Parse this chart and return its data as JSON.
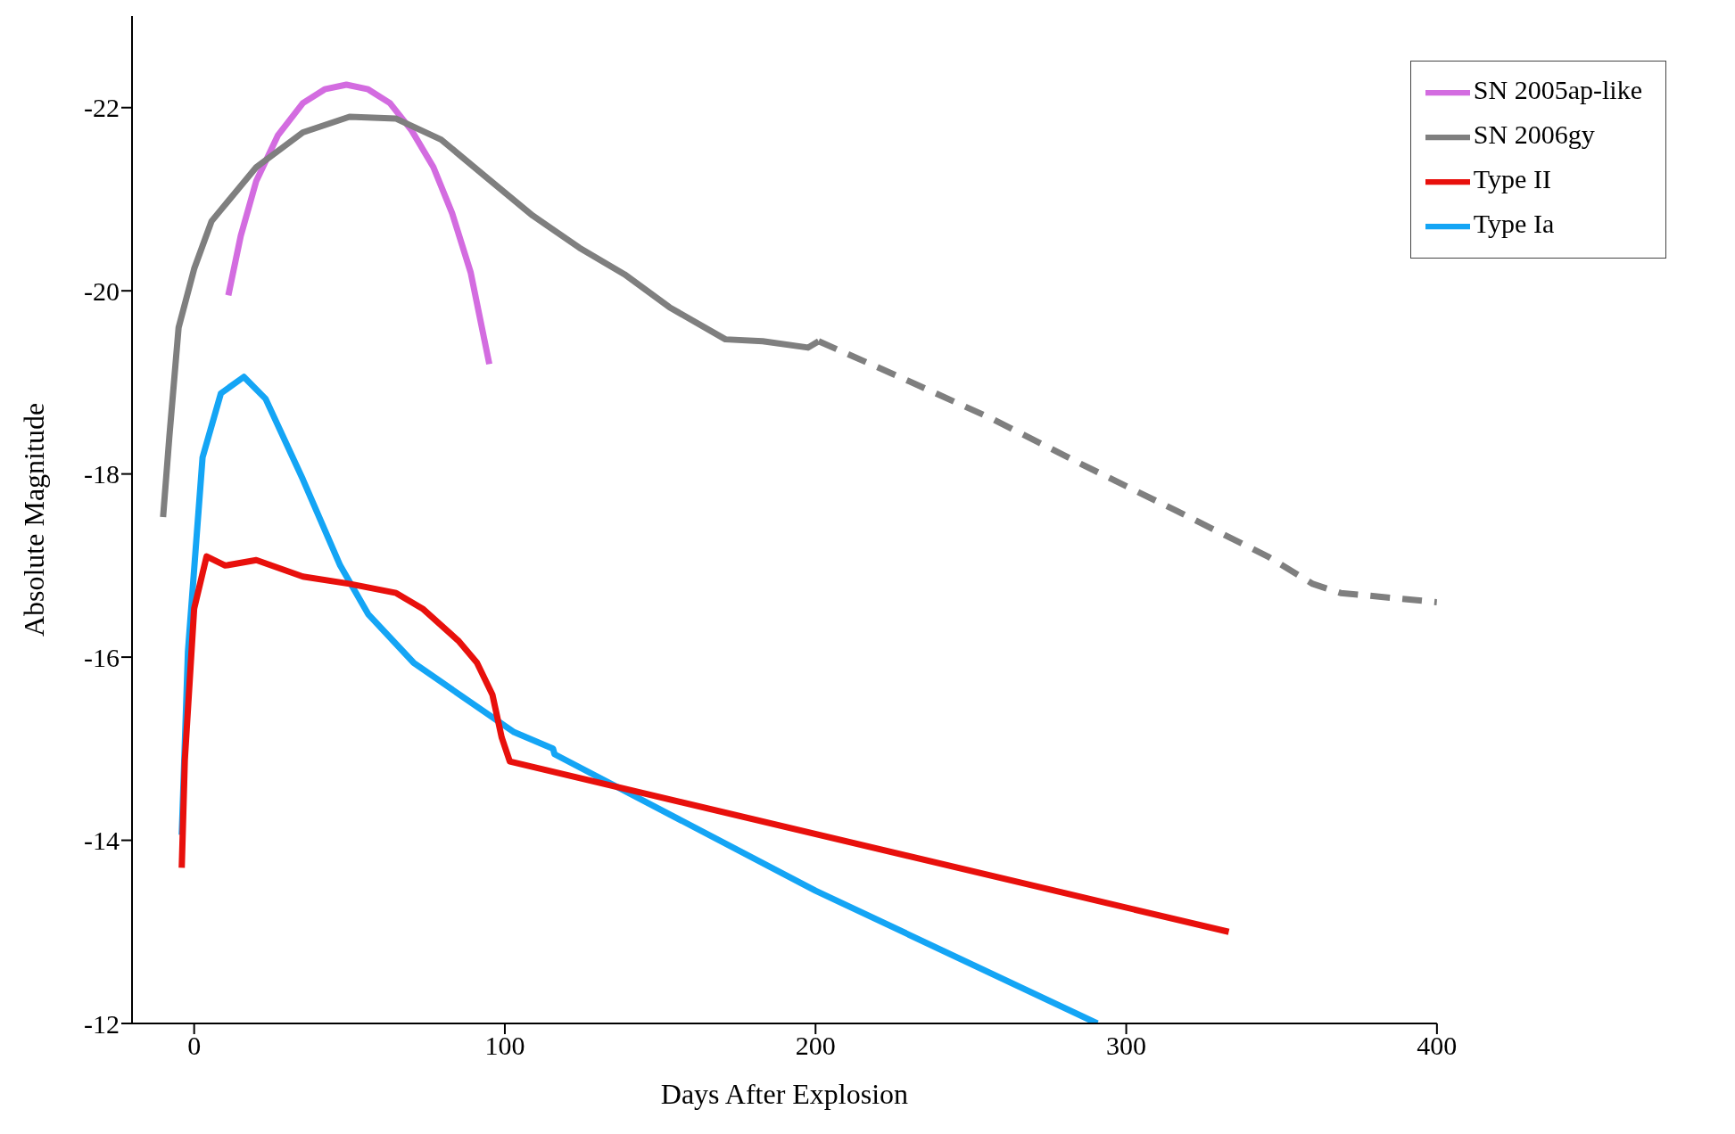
{
  "chart_data": {
    "type": "line",
    "xlabel": "Days After Explosion",
    "ylabel": "Absolute Magnitude",
    "xlim": [
      -20,
      400
    ],
    "xticks": [
      0,
      100,
      200,
      300,
      400
    ],
    "ylim": [
      -12,
      -23
    ],
    "yticks": [
      -22,
      -20,
      -18,
      -16,
      -14,
      -12
    ],
    "grid": false,
    "legend": "top right",
    "marker": "none",
    "line_style": "solid",
    "series": [
      {
        "name": "SN 2005ap-like",
        "color": "#d36ce0",
        "x": [
          11,
          15,
          20,
          27,
          35,
          42,
          49,
          56,
          63,
          70,
          77,
          83,
          89,
          95
        ],
        "values": [
          -19.95,
          -20.6,
          -21.2,
          -21.7,
          -22.05,
          -22.2,
          -22.25,
          -22.2,
          -22.05,
          -21.75,
          -21.35,
          -20.85,
          -20.2,
          -19.2
        ]
      },
      {
        "name": "SN 2006gy",
        "color": "#7f7f7f",
        "x": [
          -10,
          -8,
          -5,
          0,
          5.6,
          20,
          35,
          50,
          65,
          79.5,
          94,
          109,
          124,
          138.5,
          153,
          171,
          183,
          197.6,
          201
        ],
        "values": [
          -17.53,
          -18.4,
          -19.6,
          -20.24,
          -20.76,
          -21.35,
          -21.73,
          -21.9,
          -21.88,
          -21.65,
          -21.24,
          -20.82,
          -20.47,
          -20.18,
          -19.82,
          -19.47,
          -19.45,
          -19.38,
          -19.45
        ]
      },
      {
        "color": "#7f7f7f",
        "line_style": "dashed",
        "x": [
          201,
          227,
          257,
          286,
          316,
          345.5,
          360,
          369,
          400
        ],
        "values": [
          -19.45,
          -19.06,
          -18.6,
          -18.1,
          -17.6,
          -17.1,
          -16.8,
          -16.7,
          -16.6
        ]
      },
      {
        "name": "Type Ia",
        "color": "#14a5f5",
        "x": [
          -4,
          -2,
          2.7,
          8.6,
          16,
          23,
          35,
          47,
          56,
          70.6,
          88,
          103,
          115.5,
          116,
          200,
          290.7
        ],
        "values": [
          -14.06,
          -16.06,
          -18.18,
          -18.88,
          -19.06,
          -18.82,
          -17.94,
          -17.0,
          -16.47,
          -15.94,
          -15.53,
          -15.18,
          -15.0,
          -14.94,
          -13.45,
          -12.0
        ]
      },
      {
        "name": "Type II",
        "color": "#e8100c",
        "x": [
          -4,
          -3,
          0,
          4,
          10,
          20,
          35,
          50,
          65,
          73.5,
          85,
          91,
          96,
          99,
          101.6,
          333
        ],
        "values": [
          -13.7,
          -14.88,
          -16.53,
          -17.1,
          -17.0,
          -17.06,
          -16.88,
          -16.8,
          -16.7,
          -16.53,
          -16.18,
          -15.94,
          -15.59,
          -15.12,
          -14.86,
          -13.0
        ]
      }
    ]
  }
}
